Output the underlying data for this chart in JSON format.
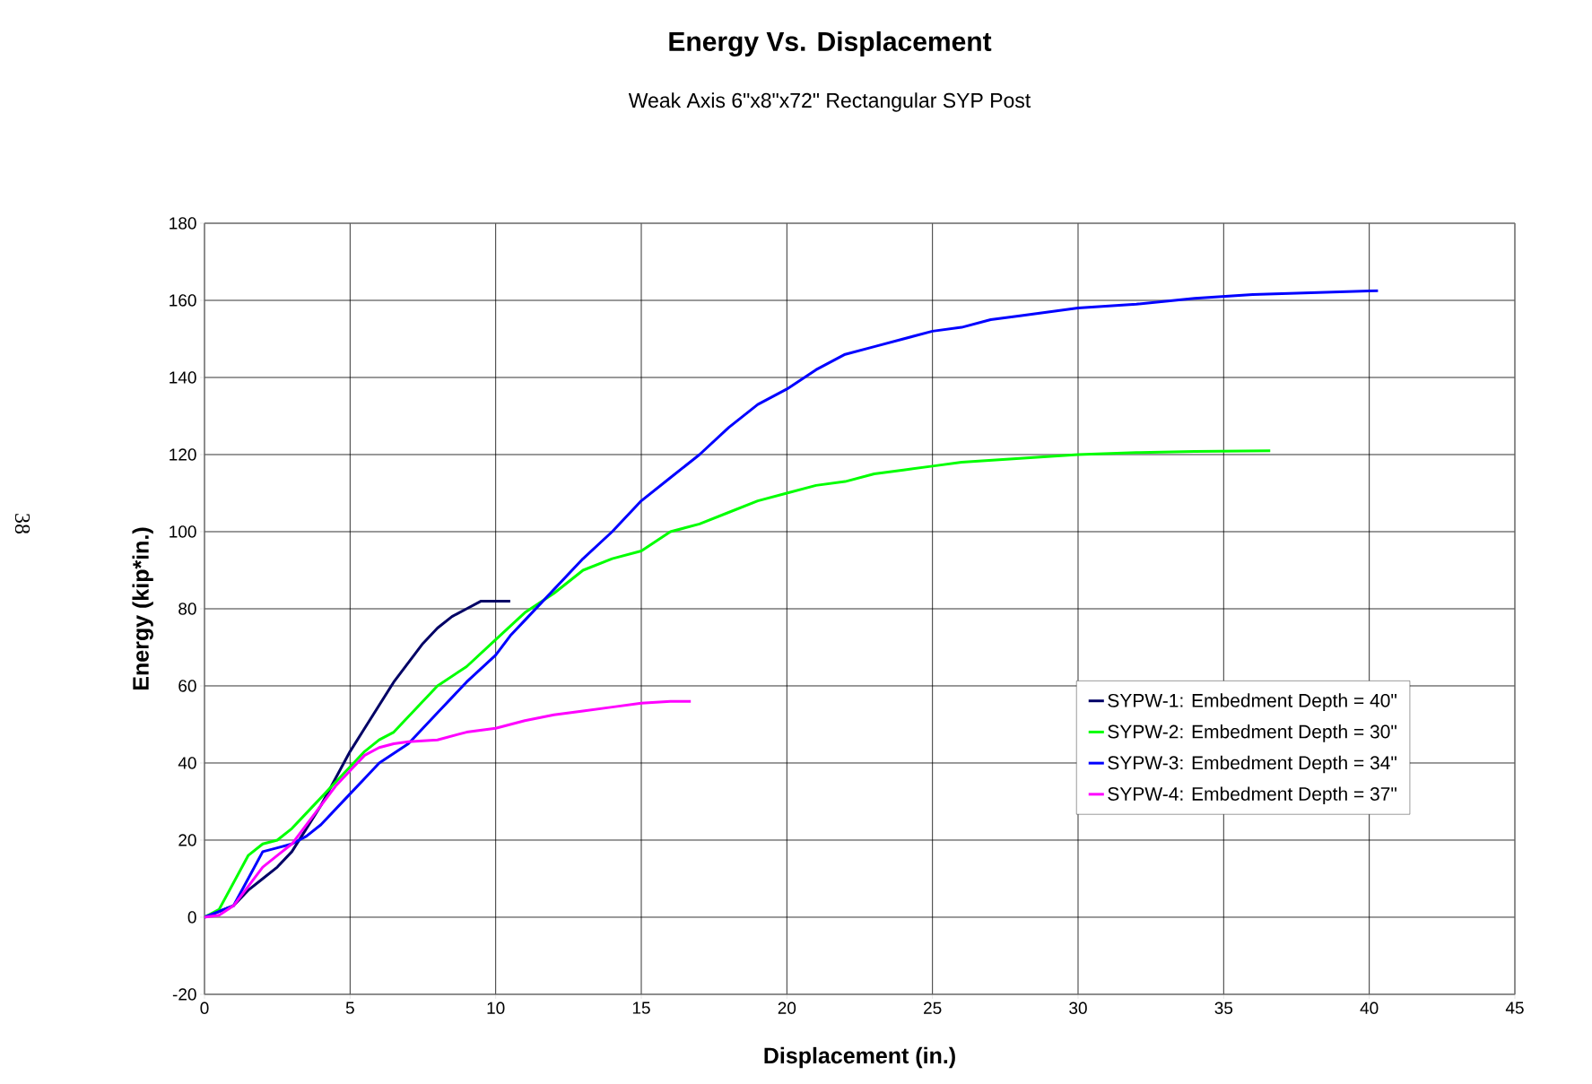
{
  "chart_data": {
    "type": "line",
    "title": "Energy Vs. Displacement",
    "subtitle": "Weak Axis 6\"x8\"x72\" Rectangular SYP Post",
    "xlabel": "Displacement (in.)",
    "ylabel": "Energy (kip*in.)",
    "annotations": [
      "38"
    ],
    "xlim": [
      0,
      45
    ],
    "ylim": [
      -20,
      180
    ],
    "xticks": [
      0,
      5,
      10,
      15,
      20,
      25,
      30,
      35,
      40,
      45
    ],
    "yticks": [
      -20,
      0,
      20,
      40,
      60,
      80,
      100,
      120,
      140,
      160,
      180
    ],
    "grid": true,
    "legend": "right",
    "marker": "none",
    "line_style": "solid",
    "series": [
      {
        "name": "SYPW-1: Embedment Depth = 40\"",
        "color": "#000066",
        "x": [
          0,
          1,
          1.5,
          2,
          2.5,
          3,
          3.5,
          4,
          4.5,
          5,
          5.5,
          6,
          6.5,
          7,
          7.5,
          8,
          8.5,
          9,
          9.5,
          10.5
        ],
        "values": [
          0,
          3,
          7,
          10,
          13,
          17,
          23,
          29,
          36,
          43,
          49,
          55,
          61,
          66,
          71,
          75,
          78,
          80,
          82,
          82
        ]
      },
      {
        "name": "SYPW-2: Embedment Depth = 30\"",
        "color": "#00ff00",
        "x": [
          0,
          0.5,
          1,
          1.5,
          2,
          2.5,
          3,
          3.5,
          4,
          4.5,
          5,
          5.5,
          6,
          6.5,
          7,
          8,
          9,
          10,
          11,
          12,
          13,
          14,
          15,
          16,
          17,
          18,
          19,
          20,
          21,
          22,
          23,
          24,
          25,
          26,
          28,
          30,
          32,
          34,
          36.6
        ],
        "values": [
          0,
          2,
          9,
          16,
          19,
          20,
          23,
          27,
          31,
          35,
          39,
          43,
          46,
          48,
          52,
          60,
          65,
          72,
          79,
          84,
          90,
          93,
          95,
          100,
          102,
          105,
          108,
          110,
          112,
          113,
          115,
          116,
          117,
          118,
          119,
          120,
          120.5,
          120.8,
          121
        ]
      },
      {
        "name": "SYPW-3: Embedment Depth = 34\"",
        "color": "#0000ff",
        "x": [
          0,
          1,
          1.5,
          2,
          2.5,
          3,
          3.5,
          4,
          4.5,
          5,
          5.5,
          6,
          7,
          8,
          9,
          10,
          10.5,
          11,
          12,
          13,
          14,
          15,
          16,
          17,
          18,
          19,
          20,
          21,
          22,
          23,
          24,
          25,
          26,
          27,
          28,
          30,
          32,
          34,
          36,
          38,
          40.3
        ],
        "values": [
          0,
          3,
          10,
          17,
          18,
          19,
          21,
          24,
          28,
          32,
          36,
          40,
          45,
          53,
          61,
          68,
          73,
          77,
          85,
          93,
          100,
          108,
          114,
          120,
          127,
          133,
          137,
          142,
          146,
          148,
          150,
          152,
          153,
          155,
          156,
          158,
          159,
          160.5,
          161.5,
          162,
          162.5
        ]
      },
      {
        "name": "SYPW-4: Embedment Depth = 37\"",
        "color": "#ff00ff",
        "x": [
          0,
          0.5,
          1,
          1.5,
          2,
          2.5,
          3,
          3.5,
          4,
          4.5,
          5,
          5.5,
          6,
          6.5,
          7,
          8,
          9,
          10,
          11,
          12,
          13,
          14,
          15,
          16,
          16.7
        ],
        "values": [
          0,
          0.5,
          3,
          8,
          13,
          16,
          19,
          24,
          29,
          34,
          38,
          42,
          44,
          45,
          45.5,
          46,
          48,
          49,
          51,
          52.5,
          53.5,
          54.5,
          55.5,
          56,
          56
        ]
      }
    ]
  }
}
